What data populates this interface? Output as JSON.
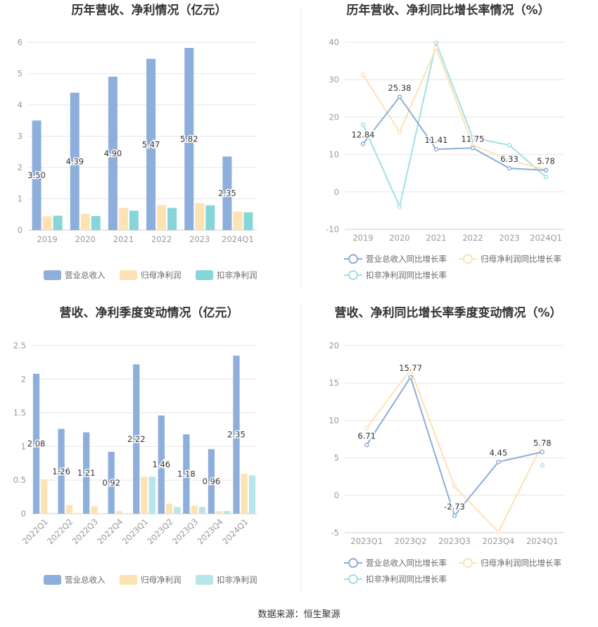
{
  "source_text": "数据来源：恒生聚源",
  "chart_data": [
    {
      "type": "bar",
      "title": "历年营收、净利情况（亿元）",
      "categories": [
        "2019",
        "2020",
        "2021",
        "2022",
        "2023",
        "2024Q1"
      ],
      "ylim": [
        0,
        6
      ],
      "yticks": [
        "0",
        "1",
        "2",
        "3",
        "4",
        "5",
        "6"
      ],
      "grid": true,
      "legend_position": "bottom",
      "series": [
        {
          "name": "营业总收入",
          "color": "#8eaedb",
          "values": [
            3.5,
            4.39,
            4.9,
            5.47,
            5.82,
            2.35
          ],
          "labels": [
            "3.50",
            "4.39",
            "4.90",
            "5.47",
            "5.82",
            "2.35"
          ]
        },
        {
          "name": "归母净利润",
          "color": "#fde2b4",
          "values": [
            0.44,
            0.52,
            0.71,
            0.8,
            0.86,
            0.59
          ]
        },
        {
          "name": "扣非净利润",
          "color": "#86d5d8",
          "values": [
            0.46,
            0.45,
            0.62,
            0.71,
            0.79,
            0.57
          ]
        }
      ]
    },
    {
      "type": "line",
      "title": "历年营收、净利同比增长率情况（%）",
      "categories": [
        "2019",
        "2020",
        "2021",
        "2022",
        "2023",
        "2024Q1"
      ],
      "ylim": [
        -10,
        40
      ],
      "yticks": [
        "-10",
        "0",
        "10",
        "20",
        "30",
        "40"
      ],
      "grid": true,
      "legend_position": "bottom",
      "series": [
        {
          "name": "营业总收入同比增长率",
          "color": "#8eaedb",
          "values": [
            12.84,
            25.38,
            11.41,
            11.75,
            6.33,
            5.78
          ],
          "labels": [
            "12.84",
            "25.38",
            "11.41",
            "11.75",
            "6.33",
            "5.78"
          ]
        },
        {
          "name": "归母净利润同比增长率",
          "color": "#fde2b4",
          "values": [
            31.3,
            16.0,
            38.5,
            12.5,
            8.5,
            6.0
          ]
        },
        {
          "name": "扣非净利润同比增长率",
          "color": "#a3e0e3",
          "values": [
            18.0,
            -3.9,
            39.8,
            14.5,
            12.5,
            4.0
          ]
        }
      ]
    },
    {
      "type": "bar",
      "title": "营收、净利季度变动情况（亿元）",
      "categories": [
        "2022Q1",
        "2022Q2",
        "2022Q3",
        "2022Q4",
        "2023Q1",
        "2023Q2",
        "2023Q3",
        "2023Q4",
        "2024Q1"
      ],
      "ylim": [
        0,
        2.5
      ],
      "yticks": [
        "0",
        "0.5",
        "1",
        "1.5",
        "2",
        "2.5"
      ],
      "grid": true,
      "legend_position": "bottom",
      "series": [
        {
          "name": "营业总收入",
          "color": "#8eaedb",
          "values": [
            2.08,
            1.26,
            1.21,
            0.92,
            2.22,
            1.46,
            1.18,
            0.96,
            2.35
          ],
          "labels": [
            "2.08",
            "1.26",
            "1.21",
            "0.92",
            "2.22",
            "1.46",
            "1.18",
            "0.96",
            "2.35"
          ]
        },
        {
          "name": "归母净利润",
          "color": "#fde2b4",
          "values": [
            0.51,
            0.13,
            0.11,
            0.04,
            0.55,
            0.15,
            0.12,
            0.04,
            0.59
          ]
        },
        {
          "name": "扣非净利润",
          "color": "#b6e6e8",
          "values": [
            0.0,
            0.0,
            0.0,
            0.0,
            0.55,
            0.1,
            0.1,
            0.04,
            0.57
          ]
        }
      ]
    },
    {
      "type": "line",
      "title": "营收、净利同比增长率季度变动情况（%）",
      "categories": [
        "2023Q1",
        "2023Q2",
        "2023Q3",
        "2023Q4",
        "2024Q1"
      ],
      "ylim": [
        -5,
        20
      ],
      "yticks": [
        "-5",
        "0",
        "5",
        "10",
        "15",
        "20"
      ],
      "grid": true,
      "legend_position": "bottom",
      "series": [
        {
          "name": "营业总收入同比增长率",
          "color": "#8eaedb",
          "values": [
            6.71,
            15.77,
            -2.73,
            4.45,
            5.78
          ],
          "labels": [
            "6.71",
            "15.77",
            "-2.73",
            "4.45",
            "5.78"
          ]
        },
        {
          "name": "归母净利润同比增长率",
          "color": "#fde2b4",
          "values": [
            9.0,
            16.8,
            1.2,
            -4.9,
            6.8
          ]
        },
        {
          "name": "扣非净利润同比增长率",
          "color": "#a3e0e3",
          "values": [
            null,
            null,
            null,
            null,
            4.0
          ]
        }
      ]
    }
  ]
}
